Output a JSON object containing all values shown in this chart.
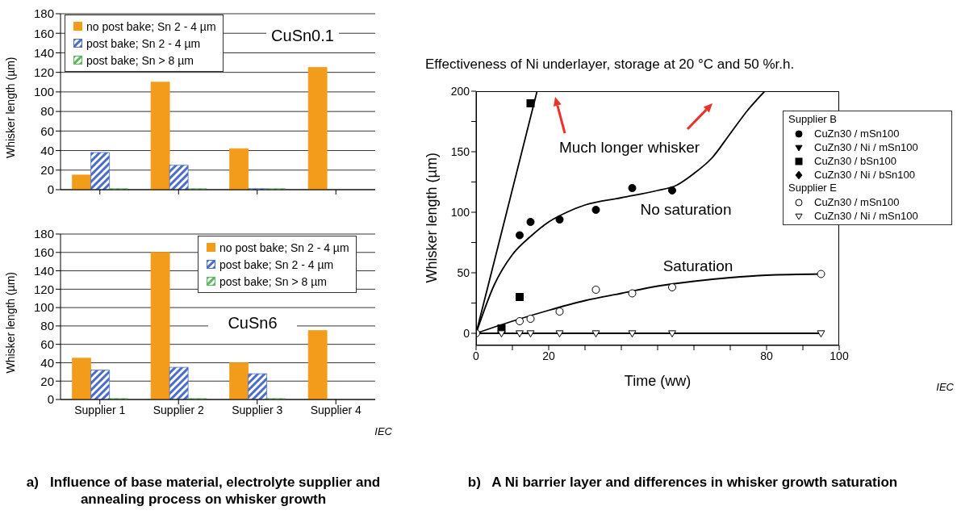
{
  "chart_data": [
    {
      "type": "bar",
      "categories": [
        null,
        null,
        null,
        null
      ],
      "ylabel": "Whisker length  (µm)",
      "ylim": [
        0,
        180
      ],
      "yticks": [
        0,
        20,
        40,
        60,
        80,
        100,
        120,
        140,
        160,
        180
      ],
      "grid": "y",
      "legend": "top left",
      "annotations": [
        "CuSn0.1"
      ],
      "series": [
        {
          "name": "no post bake; Sn 2 - 4 µm",
          "color": "#f39c1b",
          "values": [
            15,
            110,
            42,
            125
          ]
        },
        {
          "name": "post bake; Sn 2 - 4 µm",
          "color": "#4a6ec8",
          "values": [
            38,
            25,
            1,
            null
          ]
        },
        {
          "name": "post bake; Sn > 8 µm",
          "color": "#5cb85c",
          "values": [
            1,
            1,
            1,
            null
          ]
        }
      ]
    },
    {
      "type": "bar",
      "categories": [
        "Supplier 1",
        "Supplier 2",
        "Supplier 3",
        "Supplier 4"
      ],
      "ylabel": "Whisker length  (µm)",
      "ylim": [
        0,
        180
      ],
      "yticks": [
        0,
        20,
        40,
        60,
        80,
        100,
        120,
        140,
        160,
        180
      ],
      "grid": "y",
      "legend": "top right",
      "annotations": [
        "CuSn6",
        "IEC",
        "a)   Influence of base material, electrolyte supplier and annealing process on whisker growth"
      ],
      "series": [
        {
          "name": "no post bake; Sn 2 - 4 µm",
          "color": "#f39c1b",
          "values": [
            45,
            160,
            40,
            75
          ]
        },
        {
          "name": "post bake; Sn 2 - 4 µm",
          "color": "#4a6ec8",
          "values": [
            32,
            35,
            28,
            null
          ]
        },
        {
          "name": "post bake; Sn > 8 µm",
          "color": "#5cb85c",
          "values": [
            1,
            1,
            1,
            null
          ]
        }
      ]
    },
    {
      "type": "scatter",
      "title": "Effectiveness of Ni underlayer, storage at 20 °C and 50 %r.h.",
      "xlabel": "Time  (ww)",
      "ylabel": "Whisker length  (µm)",
      "xlim": [
        0,
        100
      ],
      "ylim": [
        -10,
        200
      ],
      "xticks": [
        0,
        {
          "value": 10,
          "label": null
        },
        20,
        {
          "value": 30,
          "label": null
        },
        {
          "value": 40,
          "label": null
        },
        {
          "value": 50,
          "label": null
        },
        {
          "value": 60,
          "label": null
        },
        {
          "value": 70,
          "label": null
        },
        80,
        {
          "value": 90,
          "label": null
        },
        100
      ],
      "yticks": [
        0,
        {
          "value": 25,
          "label": null
        },
        50,
        {
          "value": 75,
          "label": null
        },
        100,
        {
          "value": 125,
          "label": null
        },
        150,
        {
          "value": 175,
          "label": null
        },
        200
      ],
      "grid": false,
      "legend": "right",
      "annotations": [
        "Much longer whisker",
        "No saturation",
        "Saturation",
        "Supplier B",
        "Supplier E",
        "IEC",
        "b)   A Ni barrier layer and differences in whisker growth saturation"
      ],
      "series": [
        {
          "name": "CuZn30 / mSn100",
          "color": "#000000",
          "marker": "circle",
          "x": [
            12,
            15,
            23,
            33,
            43,
            54
          ],
          "values": [
            81,
            92,
            94,
            102,
            120,
            118
          ]
        },
        {
          "name": "CuZn30 / Ni / mSn100",
          "color": "#000000",
          "marker": "triangle"
        },
        {
          "name": "CuZn30 / bSn100",
          "color": "#000000",
          "marker": "square",
          "x": [
            7,
            12,
            15
          ],
          "values": [
            4,
            30,
            190
          ]
        },
        {
          "name": "CuZn30 / Ni / bSn100",
          "color": "#000000",
          "marker": "diamond"
        },
        {
          "name": "CuZn30 / mSn100",
          "color": "#ffffff",
          "marker": "circle",
          "x": [
            0,
            12,
            15,
            23,
            33,
            43,
            54,
            95
          ],
          "values": [
            0,
            10,
            12,
            18,
            36,
            33,
            38,
            49
          ]
        },
        {
          "name": "CuZn30 / Ni / mSn100",
          "color": "#ffffff",
          "marker": "triangle",
          "x": [
            7,
            12,
            15,
            23,
            33,
            43,
            54,
            95
          ],
          "values": [
            0,
            0,
            0,
            0,
            0,
            0,
            0,
            0
          ]
        },
        {
          "type": "line",
          "color": "#000000",
          "marker": "none",
          "x": [
            0,
            8,
            16.8
          ],
          "values": [
            0,
            95,
            200
          ]
        },
        {
          "type": "line",
          "color": "#000000",
          "marker": "none",
          "x": [
            0,
            5,
            10,
            15,
            20,
            25,
            30,
            40,
            50,
            55,
            60,
            65,
            70,
            75,
            79.5
          ],
          "values": [
            0,
            40,
            65,
            80,
            92,
            100,
            106,
            112,
            118,
            122,
            132,
            145,
            165,
            185,
            200
          ]
        },
        {
          "type": "line",
          "color": "#000000",
          "marker": "none",
          "x": [
            0,
            10,
            20,
            30,
            40,
            50,
            60,
            70,
            80,
            95
          ],
          "values": [
            0,
            10,
            19,
            27,
            33,
            39,
            43,
            46,
            48,
            49
          ]
        },
        {
          "type": "line",
          "color": "#000000",
          "marker": "none",
          "x": [
            0,
            95
          ],
          "values": [
            0,
            0
          ]
        }
      ]
    }
  ]
}
